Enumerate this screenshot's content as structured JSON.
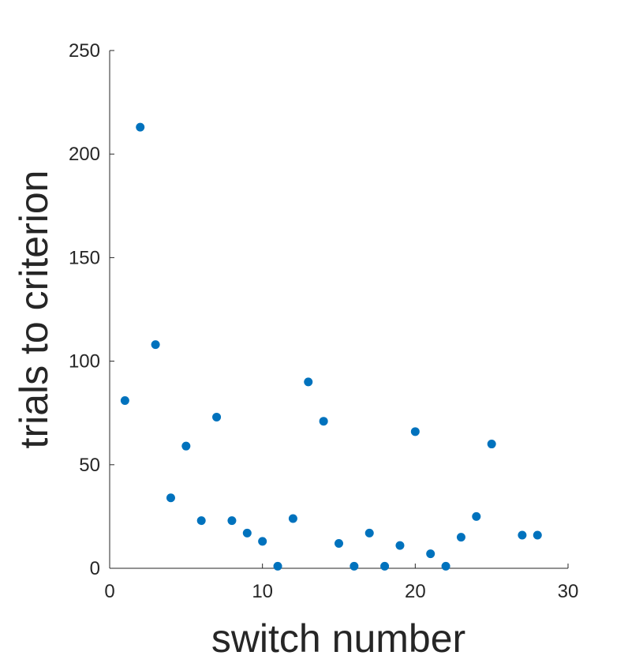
{
  "chart_data": {
    "type": "scatter",
    "title": "",
    "xlabel": "switch number",
    "ylabel": "trials to criterion",
    "xlim": [
      0,
      30
    ],
    "ylim": [
      0,
      250
    ],
    "x_ticks": [
      0,
      10,
      20,
      30
    ],
    "y_ticks": [
      0,
      50,
      100,
      150,
      200,
      250
    ],
    "grid": false,
    "legend": "none",
    "marker_color": "#0072BD",
    "series": [
      {
        "x": [
          1,
          2,
          3,
          4,
          5,
          6,
          7,
          8,
          9,
          10,
          11,
          12,
          13,
          14,
          15,
          16,
          17,
          18,
          19,
          20,
          21,
          22,
          23,
          24,
          25,
          27,
          28
        ],
        "y": [
          81,
          213,
          108,
          34,
          59,
          23,
          73,
          23,
          17,
          13,
          1,
          24,
          90,
          71,
          12,
          1,
          17,
          1,
          11,
          66,
          7,
          1,
          15,
          25,
          60,
          16,
          16
        ]
      }
    ]
  }
}
